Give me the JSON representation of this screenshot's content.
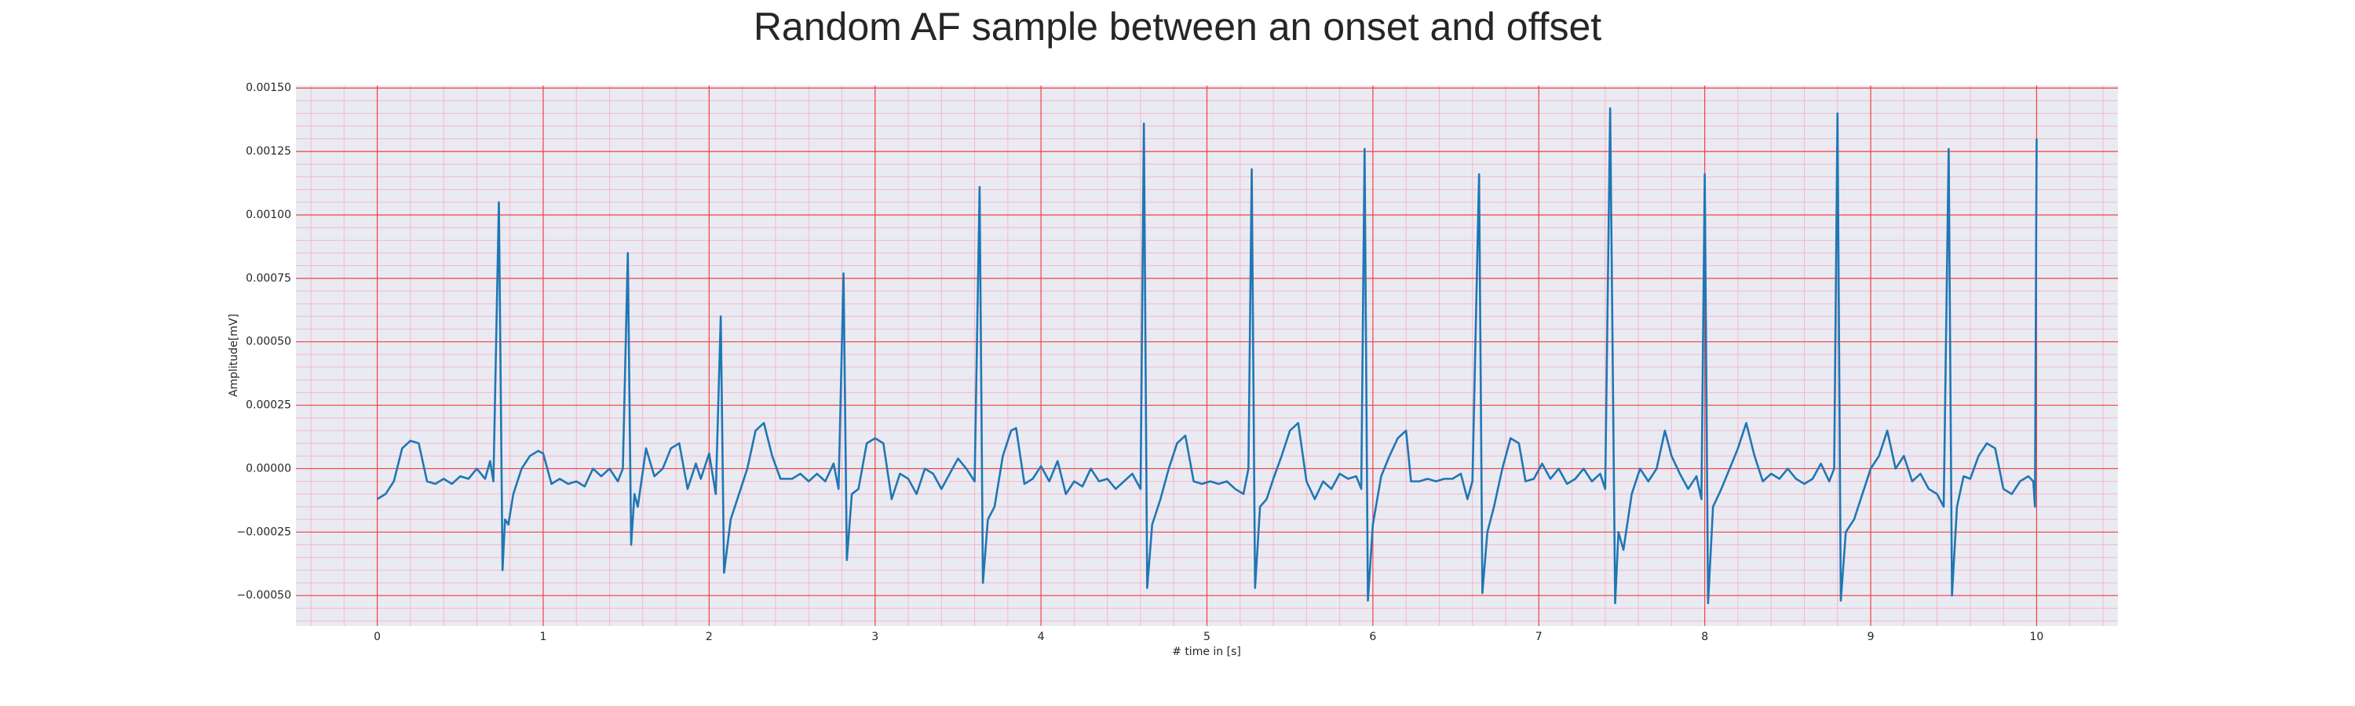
{
  "chart_data": {
    "type": "line",
    "title": "Random AF sample between an onset and offset",
    "xlabel": "# time in [s]",
    "ylabel": "Amplitude[mV]",
    "xlim": [
      -0.49,
      10.49
    ],
    "ylim": [
      -0.00062,
      0.00151
    ],
    "xticks": [
      0,
      1,
      2,
      3,
      4,
      5,
      6,
      7,
      8,
      9,
      10
    ],
    "yticks": [
      {
        "value": -0.0005,
        "label": "−0.00050"
      },
      {
        "value": -0.00025,
        "label": "−0.00025"
      },
      {
        "value": 0,
        "label": "0.00000"
      },
      {
        "value": 0.00025,
        "label": "0.00025"
      },
      {
        "value": 0.0005,
        "label": "0.00050"
      },
      {
        "value": 0.00075,
        "label": "0.00075"
      },
      {
        "value": 0.001,
        "label": "0.00100"
      },
      {
        "value": 0.00125,
        "label": "0.00125"
      },
      {
        "value": 0.0015,
        "label": "0.00150"
      }
    ],
    "grid": true,
    "grid_color": "#f04040",
    "minor_grid": true,
    "background": "#eaeaf2",
    "series": [
      {
        "color": "#1f77b4",
        "x": [
          0,
          0.05,
          0.1,
          0.15,
          0.2,
          0.25,
          0.3,
          0.35,
          0.4,
          0.45,
          0.5,
          0.55,
          0.6,
          0.65,
          0.68,
          0.7,
          0.733,
          0.755,
          0.77,
          0.79,
          0.82,
          0.87,
          0.92,
          0.97,
          1.0,
          1.05,
          1.1,
          1.15,
          1.2,
          1.25,
          1.3,
          1.35,
          1.4,
          1.45,
          1.48,
          1.51,
          1.53,
          1.55,
          1.57,
          1.62,
          1.67,
          1.72,
          1.77,
          1.82,
          1.87,
          1.92,
          1.95,
          2.0,
          2.04,
          2.07,
          2.09,
          2.13,
          2.18,
          2.23,
          2.28,
          2.33,
          2.38,
          2.43,
          2.5,
          2.55,
          2.6,
          2.65,
          2.7,
          2.75,
          2.78,
          2.81,
          2.83,
          2.86,
          2.9,
          2.95,
          3.0,
          3.05,
          3.1,
          3.15,
          3.2,
          3.25,
          3.3,
          3.35,
          3.4,
          3.45,
          3.5,
          3.55,
          3.6,
          3.63,
          3.65,
          3.68,
          3.72,
          3.77,
          3.82,
          3.85,
          3.9,
          3.95,
          4.0,
          4.05,
          4.1,
          4.15,
          4.2,
          4.25,
          4.3,
          4.35,
          4.4,
          4.45,
          4.5,
          4.55,
          4.6,
          4.62,
          4.64,
          4.67,
          4.72,
          4.77,
          4.82,
          4.87,
          4.92,
          4.97,
          5.02,
          5.07,
          5.12,
          5.17,
          5.22,
          5.25,
          5.27,
          5.29,
          5.32,
          5.36,
          5.4,
          5.45,
          5.5,
          5.55,
          5.6,
          5.65,
          5.7,
          5.75,
          5.8,
          5.85,
          5.9,
          5.93,
          5.95,
          5.97,
          6.0,
          6.05,
          6.1,
          6.15,
          6.2,
          6.23,
          6.28,
          6.33,
          6.38,
          6.43,
          6.48,
          6.53,
          6.57,
          6.6,
          6.64,
          6.66,
          6.69,
          6.73,
          6.78,
          6.83,
          6.88,
          6.92,
          6.97,
          7.02,
          7.07,
          7.12,
          7.17,
          7.22,
          7.27,
          7.32,
          7.37,
          7.4,
          7.43,
          7.46,
          7.48,
          7.51,
          7.56,
          7.61,
          7.66,
          7.71,
          7.76,
          7.8,
          7.85,
          7.9,
          7.95,
          7.98,
          8.0,
          8.02,
          8.05,
          8.1,
          8.15,
          8.2,
          8.25,
          8.3,
          8.35,
          8.4,
          8.45,
          8.5,
          8.55,
          8.6,
          8.65,
          8.7,
          8.75,
          8.78,
          8.8,
          8.82,
          8.85,
          8.9,
          8.95,
          9.0,
          9.05,
          9.1,
          9.15,
          9.2,
          9.25,
          9.3,
          9.35,
          9.4,
          9.44,
          9.47,
          9.49,
          9.52,
          9.56,
          9.6,
          9.65,
          9.7,
          9.75,
          9.8,
          9.85,
          9.9,
          9.95,
          9.98,
          9.99,
          10.0
        ],
        "values": [
          -0.00012,
          -0.0001,
          -5e-05,
          8e-05,
          0.00011,
          0.0001,
          -5e-05,
          -6e-05,
          -4e-05,
          -6e-05,
          -3e-05,
          -4e-05,
          0,
          -4e-05,
          3e-05,
          -5e-05,
          0.00105,
          -0.0004,
          -0.0002,
          -0.00022,
          -0.0001,
          0,
          5e-05,
          7e-05,
          6e-05,
          -6e-05,
          -4e-05,
          -6e-05,
          -5e-05,
          -7e-05,
          0,
          -3e-05,
          0,
          -5e-05,
          0,
          0.00085,
          -0.0003,
          -0.0001,
          -0.00015,
          8e-05,
          -3e-05,
          0,
          8e-05,
          0.0001,
          -8e-05,
          2e-05,
          -4e-05,
          6e-05,
          -0.0001,
          0.0006,
          -0.00041,
          -0.0002,
          -0.0001,
          0,
          0.00015,
          0.00018,
          5e-05,
          -4e-05,
          -4e-05,
          -2e-05,
          -5e-05,
          -2e-05,
          -5e-05,
          2e-05,
          -8e-05,
          0.00077,
          -0.00036,
          -0.0001,
          -8e-05,
          0.0001,
          0.00012,
          0.0001,
          -0.00012,
          -2e-05,
          -4e-05,
          -0.0001,
          0,
          -2e-05,
          -8e-05,
          -2e-05,
          4e-05,
          0,
          -5e-05,
          0.00111,
          -0.00045,
          -0.0002,
          -0.00015,
          5e-05,
          0.00015,
          0.00016,
          -6e-05,
          -4e-05,
          1e-05,
          -5e-05,
          3e-05,
          -0.0001,
          -5e-05,
          -7e-05,
          0,
          -5e-05,
          -4e-05,
          -8e-05,
          -5e-05,
          -2e-05,
          -8e-05,
          0.00136,
          -0.00047,
          -0.00022,
          -0.00012,
          0,
          0.0001,
          0.00013,
          -5e-05,
          -6e-05,
          -5e-05,
          -6e-05,
          -5e-05,
          -8e-05,
          -0.0001,
          0,
          0.00118,
          -0.00047,
          -0.00015,
          -0.00012,
          -4e-05,
          5e-05,
          0.00015,
          0.00018,
          -5e-05,
          -0.00012,
          -5e-05,
          -8e-05,
          -2e-05,
          -4e-05,
          -3e-05,
          -8e-05,
          0.00126,
          -0.00052,
          -0.00022,
          -3e-05,
          5e-05,
          0.00012,
          0.00015,
          -5e-05,
          -5e-05,
          -4e-05,
          -5e-05,
          -4e-05,
          -4e-05,
          -2e-05,
          -0.00012,
          -5e-05,
          0.00116,
          -0.00049,
          -0.00025,
          -0.00015,
          0,
          0.00012,
          0.0001,
          -5e-05,
          -4e-05,
          2e-05,
          -4e-05,
          0,
          -6e-05,
          -4e-05,
          0,
          -5e-05,
          -2e-05,
          -8e-05,
          0.00142,
          -0.00053,
          -0.00025,
          -0.00032,
          -0.0001,
          0,
          -5e-05,
          0,
          0.00015,
          5e-05,
          -2e-05,
          -8e-05,
          -3e-05,
          -0.00012,
          0.00116,
          -0.00053,
          -0.00015,
          -8e-05,
          0,
          8e-05,
          0.00018,
          5e-05,
          -5e-05,
          -2e-05,
          -4e-05,
          0,
          -4e-05,
          -6e-05,
          -4e-05,
          2e-05,
          -5e-05,
          0,
          0.0014,
          -0.00052,
          -0.00025,
          -0.0002,
          -0.0001,
          0,
          5e-05,
          0.00015,
          0,
          5e-05,
          -5e-05,
          -2e-05,
          -8e-05,
          -0.0001,
          -0.00015,
          0.00126,
          -0.0005,
          -0.00015,
          -3e-05,
          -4e-05,
          5e-05,
          0.0001,
          8e-05,
          -8e-05,
          -0.0001,
          -5e-05,
          -3e-05,
          -5e-05,
          -0.00015,
          0.0013
        ]
      }
    ]
  }
}
